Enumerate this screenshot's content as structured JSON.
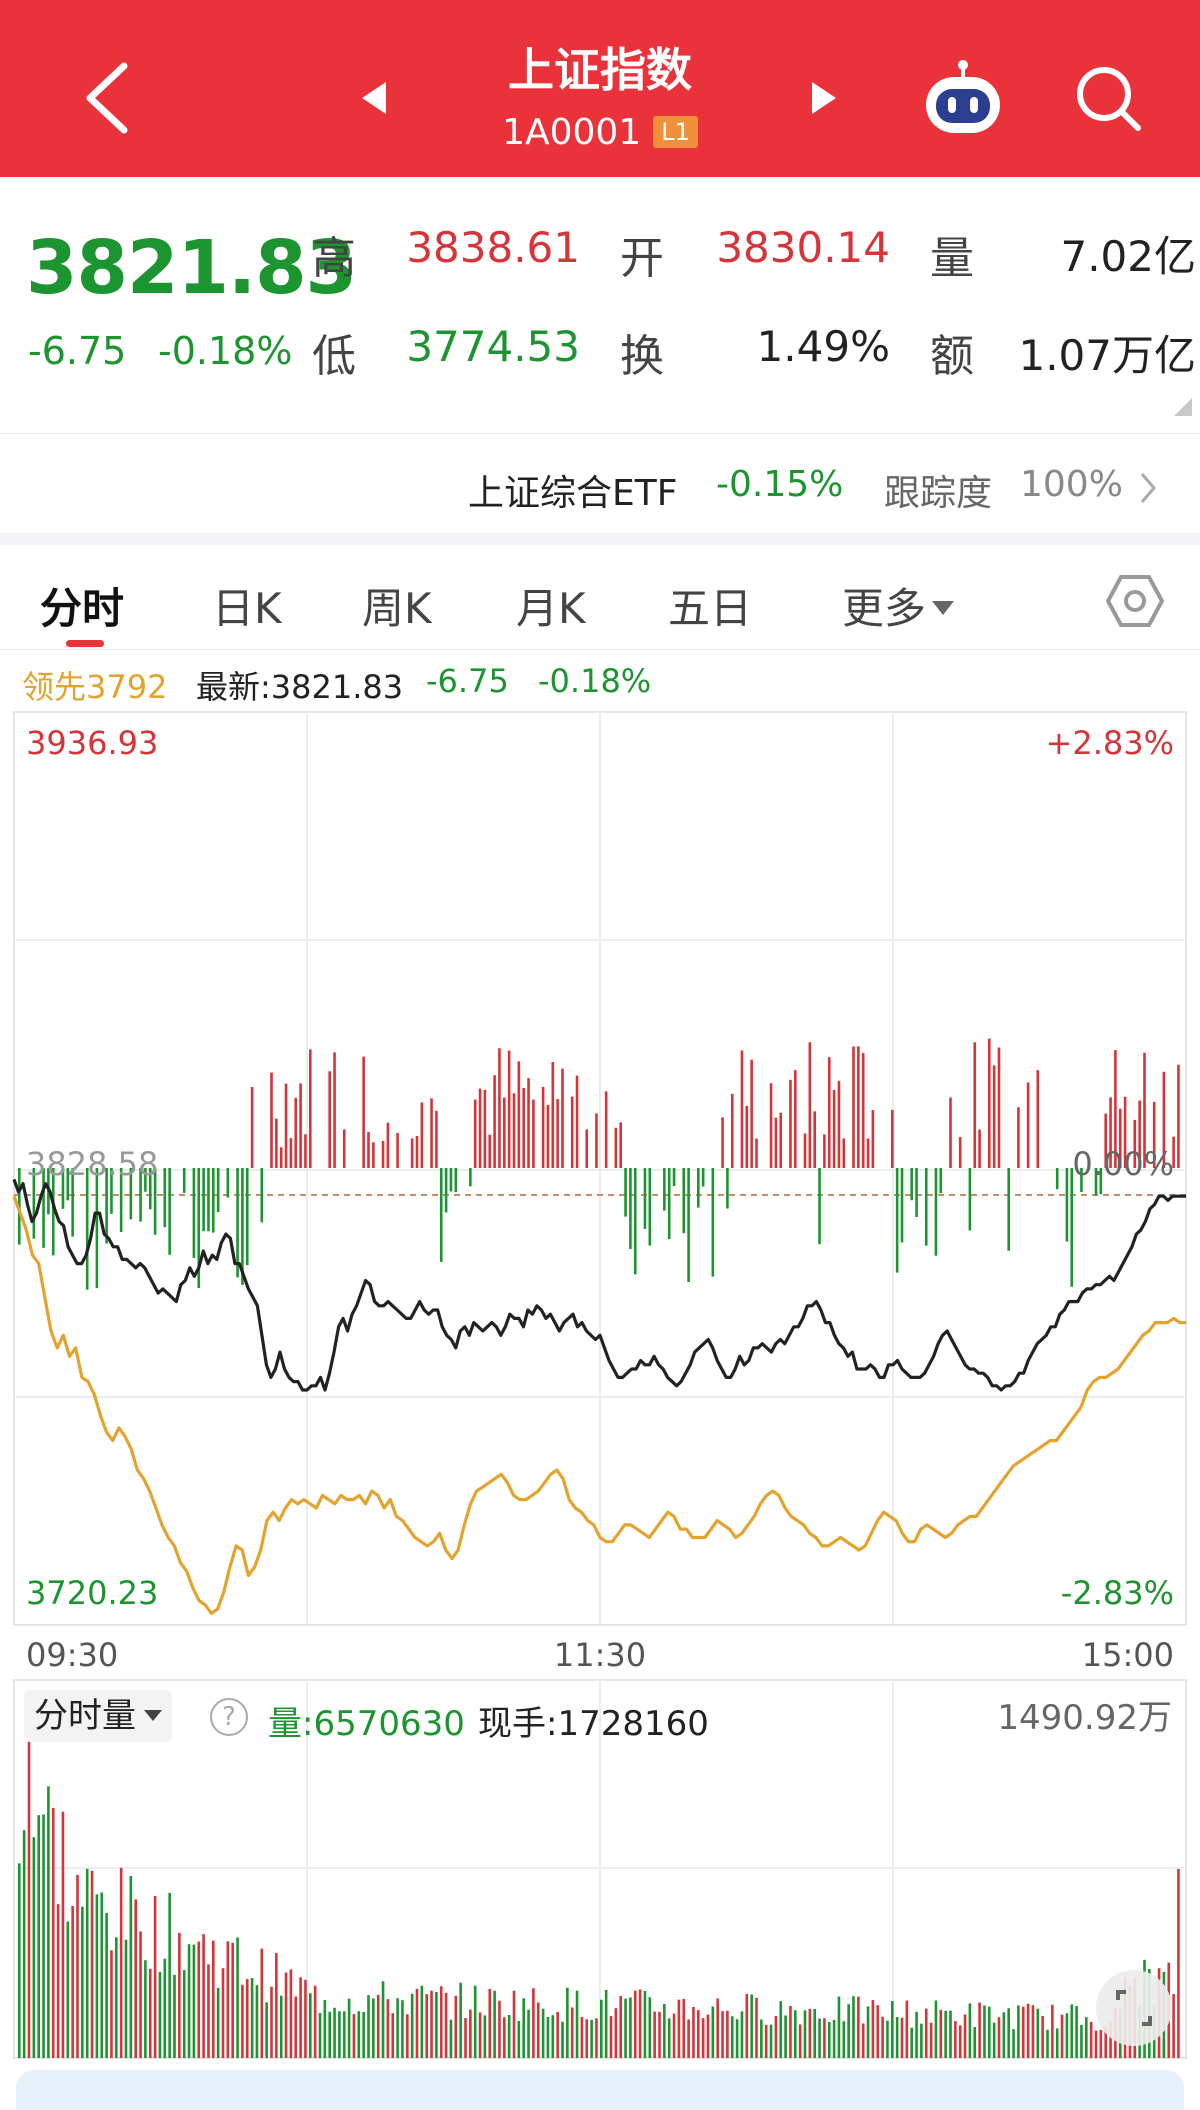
{
  "header": {
    "title": "上证指数",
    "code": "1A0001",
    "level_badge": "L1",
    "icons": [
      "back-icon",
      "prev-arrow-icon",
      "next-arrow-icon",
      "robot-assistant-icon",
      "search-icon"
    ]
  },
  "quote": {
    "price": "3821.83",
    "change": "-6.75",
    "change_pct": "-0.18%",
    "high_label": "高",
    "high": "3838.61",
    "open_label": "开",
    "open": "3830.14",
    "volume_label": "量",
    "volume": "7.02亿",
    "low_label": "低",
    "low": "3774.53",
    "turnover_label": "换",
    "turnover": "1.49%",
    "amount_label": "额",
    "amount": "1.07万亿"
  },
  "etf": {
    "name": "上证综合ETF",
    "change_pct": "-0.15%",
    "tracking_label": "跟踪度",
    "tracking_value": "100%"
  },
  "tabs": {
    "items": [
      "分时",
      "日K",
      "周K",
      "月K",
      "五日",
      "更多"
    ],
    "active": "分时"
  },
  "legend": {
    "lead": "领先3792",
    "latest": "最新:3821.83",
    "change": "-6.75",
    "change_pct": "-0.18%"
  },
  "chart_data": [
    {
      "type": "line",
      "title": "",
      "y_max_label": "3936.93",
      "y_min_label": "3720.23",
      "y_max_pct": "+2.83%",
      "y_min_pct": "-2.83%",
      "prev_close_label": "3828.58",
      "zero_pct_label": "0.00%",
      "x_ticks": [
        "09:30",
        "11:30",
        "15:00"
      ],
      "ylim": [
        3720.23,
        3936.93
      ],
      "colors": {
        "price": "#222222",
        "lead": "#e3a32d",
        "up": "#d7343a",
        "down": "#1c9530"
      },
      "series": [
        {
          "name": "最新",
          "values": [
            3826,
            3823,
            3825,
            3820,
            3816,
            3818,
            3822,
            3825,
            3823,
            3819,
            3816,
            3815,
            3810,
            3808,
            3806,
            3806,
            3808,
            3812,
            3818,
            3818,
            3813,
            3812,
            3810,
            3810,
            3807,
            3807,
            3806,
            3805,
            3806,
            3805,
            3803,
            3801,
            3799,
            3800,
            3799,
            3798,
            3797,
            3801,
            3802,
            3805,
            3803,
            3805,
            3809,
            3806,
            3808,
            3807,
            3811,
            3813,
            3812,
            3806,
            3806,
            3803,
            3800,
            3798,
            3796,
            3789,
            3782,
            3779,
            3781,
            3785,
            3781,
            3779,
            3778,
            3778,
            3776,
            3776,
            3777,
            3777,
            3779,
            3776,
            3780,
            3785,
            3791,
            3793,
            3790,
            3794,
            3796,
            3799,
            3802,
            3801,
            3797,
            3796,
            3796,
            3797,
            3796,
            3795,
            3794,
            3793,
            3793,
            3795,
            3797,
            3795,
            3794,
            3795,
            3795,
            3791,
            3789,
            3788,
            3786,
            3790,
            3791,
            3789,
            3792,
            3791,
            3790,
            3791,
            3792,
            3791,
            3789,
            3791,
            3794,
            3793,
            3793,
            3791,
            3795,
            3794,
            3796,
            3795,
            3793,
            3794,
            3792,
            3790,
            3792,
            3793,
            3794,
            3791,
            3792,
            3790,
            3789,
            3788,
            3789,
            3786,
            3783,
            3781,
            3779,
            3779,
            3780,
            3781,
            3781,
            3783,
            3782,
            3782,
            3784,
            3782,
            3781,
            3779,
            3778,
            3777,
            3778,
            3780,
            3782,
            3785,
            3786,
            3787,
            3788,
            3786,
            3783,
            3781,
            3779,
            3779,
            3781,
            3784,
            3782,
            3783,
            3786,
            3786,
            3787,
            3786,
            3785,
            3787,
            3788,
            3787,
            3789,
            3791,
            3791,
            3793,
            3796,
            3796,
            3797,
            3795,
            3792,
            3792,
            3789,
            3787,
            3786,
            3784,
            3785,
            3781,
            3781,
            3781,
            3782,
            3781,
            3779,
            3779,
            3782,
            3782,
            3783,
            3781,
            3780,
            3779,
            3779,
            3779,
            3780,
            3782,
            3784,
            3787,
            3789,
            3790,
            3788,
            3786,
            3784,
            3782,
            3781,
            3781,
            3780,
            3780,
            3779,
            3777,
            3777,
            3776,
            3777,
            3777,
            3778,
            3780,
            3780,
            3783,
            3785,
            3787,
            3788,
            3789,
            3791,
            3791,
            3794,
            3795,
            3797,
            3797,
            3797,
            3799,
            3800,
            3800,
            3801,
            3801,
            3802,
            3803,
            3802,
            3804,
            3806,
            3808,
            3810,
            3813,
            3814,
            3816,
            3819,
            3820,
            3822,
            3822,
            3821,
            3822,
            3822,
            3822,
            3822
          ]
        },
        {
          "name": "领先",
          "values": [
            3822,
            3818,
            3814,
            3808,
            3806,
            3798,
            3790,
            3786,
            3789,
            3784,
            3786,
            3779,
            3778,
            3775,
            3770,
            3766,
            3764,
            3767,
            3765,
            3762,
            3757,
            3755,
            3752,
            3748,
            3744,
            3741,
            3739,
            3735,
            3733,
            3729,
            3726,
            3725,
            3723,
            3724,
            3728,
            3734,
            3739,
            3738,
            3732,
            3734,
            3738,
            3745,
            3747,
            3745,
            3748,
            3750,
            3749,
            3750,
            3749,
            3748,
            3751,
            3750,
            3749,
            3751,
            3750,
            3750,
            3751,
            3749,
            3752,
            3751,
            3748,
            3750,
            3746,
            3745,
            3743,
            3741,
            3740,
            3739,
            3740,
            3742,
            3738,
            3736,
            3738,
            3744,
            3749,
            3752,
            3753,
            3754,
            3755,
            3756,
            3754,
            3751,
            3750,
            3750,
            3751,
            3752,
            3754,
            3756,
            3757,
            3755,
            3750,
            3748,
            3747,
            3745,
            3744,
            3741,
            3740,
            3740,
            3742,
            3744,
            3744,
            3743,
            3742,
            3741,
            3743,
            3745,
            3747,
            3746,
            3743,
            3743,
            3741,
            3741,
            3741,
            3743,
            3745,
            3744,
            3743,
            3741,
            3742,
            3744,
            3746,
            3749,
            3751,
            3752,
            3751,
            3748,
            3746,
            3745,
            3744,
            3742,
            3741,
            3739,
            3739,
            3740,
            3741,
            3740,
            3739,
            3738,
            3739,
            3742,
            3745,
            3747,
            3746,
            3745,
            3742,
            3740,
            3740,
            3743,
            3744,
            3743,
            3742,
            3741,
            3742,
            3744,
            3745,
            3746,
            3746,
            3748,
            3750,
            3752,
            3754,
            3756,
            3758,
            3759,
            3760,
            3761,
            3762,
            3763,
            3764,
            3764,
            3766,
            3768,
            3770,
            3772,
            3776,
            3778,
            3779,
            3779,
            3780,
            3781,
            3783,
            3785,
            3787,
            3789,
            3790,
            3792,
            3792,
            3792,
            3793,
            3792,
            3792
          ]
        }
      ]
    },
    {
      "type": "bar",
      "title": "分时量",
      "label": "量:6570630",
      "hand": "现手:1728160",
      "max_label": "1490.92万",
      "colors": {
        "up": "#d7343a",
        "down": "#1c9530"
      }
    }
  ]
}
